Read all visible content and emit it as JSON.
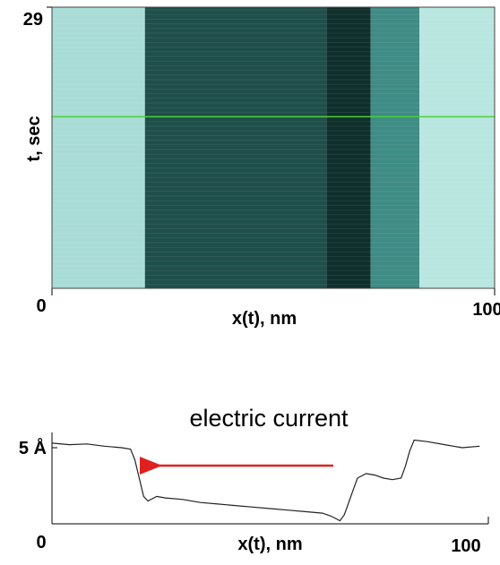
{
  "chart_data": [
    {
      "type": "heatmap",
      "xlabel": "x(t), nm",
      "ylabel": "t, sec",
      "xlim": [
        0,
        100
      ],
      "ylim": [
        0,
        29
      ],
      "xticks": [
        0,
        100
      ],
      "yticks": [
        29
      ],
      "regions": [
        {
          "x0": 0,
          "x1": 21,
          "color": "#a9dcd6"
        },
        {
          "x0": 21,
          "x1": 62,
          "color": "#1f4f4a"
        },
        {
          "x0": 62,
          "x1": 72,
          "color": "#0f2f2c"
        },
        {
          "x0": 72,
          "x1": 83,
          "color": "#3e8c85"
        },
        {
          "x0": 83,
          "x1": 100,
          "color": "#b9e6e0"
        }
      ],
      "hline": {
        "value": 17.7,
        "color": "#4ccf3a"
      }
    },
    {
      "type": "line",
      "title": "electric current",
      "xlabel": "x(t), nm",
      "xlim": [
        0,
        100
      ],
      "ylim": [
        0,
        6
      ],
      "xticks": [
        0,
        100
      ],
      "yticks": [
        {
          "value": 5,
          "label": "5 Å"
        }
      ],
      "color": "#222222",
      "x": [
        0,
        4,
        8,
        12,
        16,
        18,
        19,
        20,
        21,
        22,
        24,
        26,
        30,
        34,
        38,
        42,
        46,
        50,
        54,
        58,
        62,
        64,
        66,
        67,
        69,
        70,
        72,
        74,
        76,
        78,
        80,
        81,
        82,
        83,
        86,
        90,
        94,
        98
      ],
      "values": [
        5.3,
        5.2,
        5.25,
        5.1,
        5.0,
        4.9,
        4.2,
        3.0,
        1.8,
        1.5,
        1.8,
        1.7,
        1.6,
        1.4,
        1.3,
        1.2,
        1.1,
        1.0,
        0.9,
        0.8,
        0.7,
        0.5,
        0.2,
        0.6,
        2.2,
        3.0,
        3.3,
        3.2,
        3.0,
        2.9,
        3.0,
        3.8,
        4.8,
        5.5,
        5.4,
        5.2,
        5.0,
        5.1
      ]
    }
  ]
}
